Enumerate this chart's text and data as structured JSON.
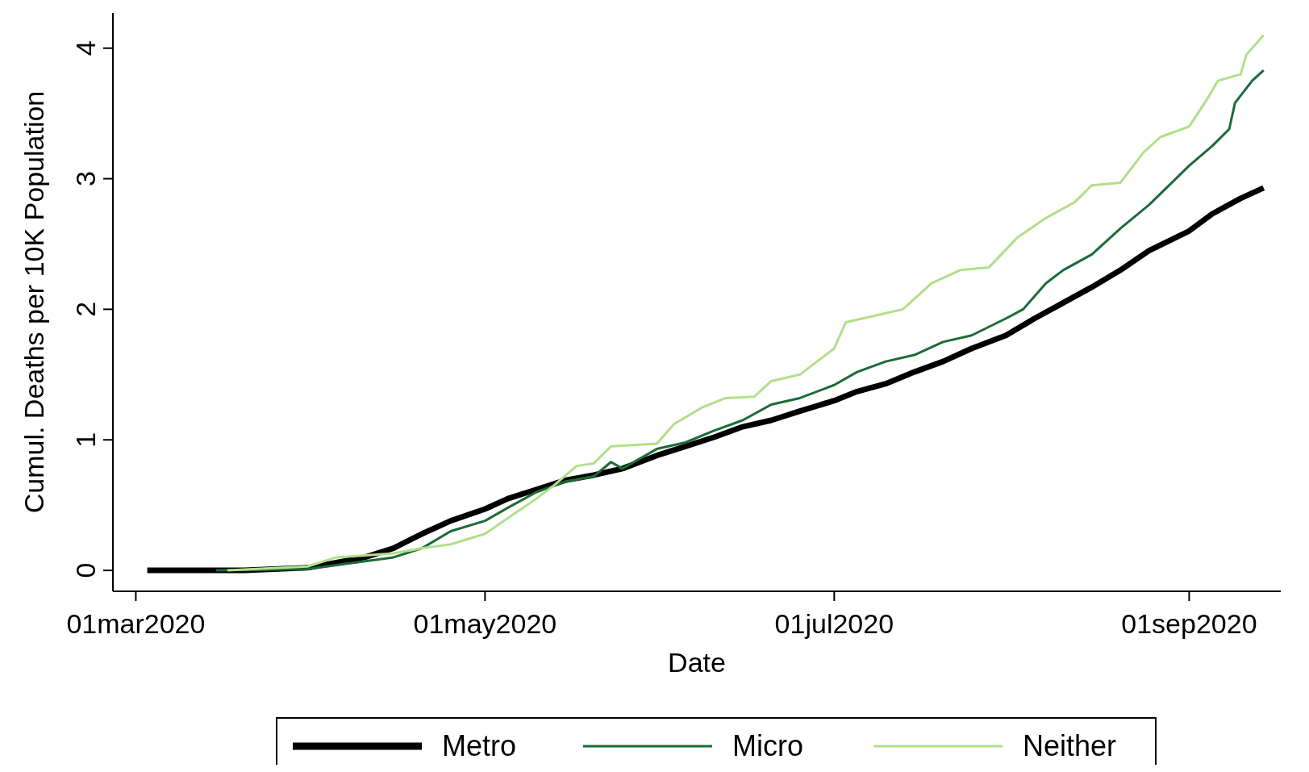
{
  "chart_data": {
    "type": "line",
    "xlabel": "Date",
    "ylabel": "Cumul. Deaths per 10K Population",
    "xlim": [
      "2020-02-26",
      "2020-09-17"
    ],
    "ylim": [
      -0.16,
      4.27
    ],
    "yticks": [
      0,
      1,
      2,
      3,
      4
    ],
    "xticks": [
      {
        "value": "2020-03-01",
        "label": "01mar2020"
      },
      {
        "value": "2020-05-01",
        "label": "01may2020"
      },
      {
        "value": "2020-07-01",
        "label": "01jul2020"
      },
      {
        "value": "2020-09-01",
        "label": "01sep2020"
      }
    ],
    "grid": false,
    "legend": "bottom",
    "marker": "none",
    "line_style": "solid",
    "series": [
      {
        "name": "Metro",
        "color": "#000000",
        "x": [
          "2020-03-03",
          "2020-03-20",
          "2020-03-31",
          "2020-04-10",
          "2020-04-15",
          "2020-04-20",
          "2020-04-25",
          "2020-05-01",
          "2020-05-05",
          "2020-05-10",
          "2020-05-15",
          "2020-05-20",
          "2020-05-25",
          "2020-05-31",
          "2020-06-05",
          "2020-06-10",
          "2020-06-15",
          "2020-06-20",
          "2020-06-25",
          "2020-07-01",
          "2020-07-05",
          "2020-07-10",
          "2020-07-15",
          "2020-07-20",
          "2020-07-25",
          "2020-07-31",
          "2020-08-05",
          "2020-08-10",
          "2020-08-15",
          "2020-08-20",
          "2020-08-25",
          "2020-09-01",
          "2020-09-05",
          "2020-09-10",
          "2020-09-14"
        ],
        "values": [
          0,
          0,
          0.02,
          0.1,
          0.17,
          0.28,
          0.38,
          0.47,
          0.55,
          0.62,
          0.69,
          0.73,
          0.78,
          0.88,
          0.95,
          1.02,
          1.1,
          1.15,
          1.22,
          1.3,
          1.37,
          1.43,
          1.52,
          1.6,
          1.7,
          1.8,
          1.93,
          2.05,
          2.17,
          2.3,
          2.45,
          2.6,
          2.73,
          2.85,
          2.93
        ]
      },
      {
        "name": "Micro",
        "color": "#1b6b3a",
        "x": [
          "2020-03-15",
          "2020-03-31",
          "2020-04-10",
          "2020-04-15",
          "2020-04-20",
          "2020-04-25",
          "2020-05-01",
          "2020-05-05",
          "2020-05-10",
          "2020-05-15",
          "2020-05-20",
          "2020-05-23",
          "2020-05-25",
          "2020-05-31",
          "2020-06-05",
          "2020-06-10",
          "2020-06-15",
          "2020-06-20",
          "2020-06-25",
          "2020-07-01",
          "2020-07-05",
          "2020-07-10",
          "2020-07-15",
          "2020-07-20",
          "2020-07-25",
          "2020-07-31",
          "2020-08-03",
          "2020-08-07",
          "2020-08-10",
          "2020-08-15",
          "2020-08-20",
          "2020-08-25",
          "2020-09-01",
          "2020-09-05",
          "2020-09-08",
          "2020-09-09",
          "2020-09-12",
          "2020-09-14"
        ],
        "values": [
          0,
          0.01,
          0.07,
          0.1,
          0.17,
          0.3,
          0.38,
          0.48,
          0.6,
          0.68,
          0.72,
          0.83,
          0.78,
          0.93,
          0.98,
          1.07,
          1.15,
          1.27,
          1.32,
          1.42,
          1.52,
          1.6,
          1.65,
          1.75,
          1.8,
          1.93,
          2.0,
          2.2,
          2.3,
          2.42,
          2.62,
          2.8,
          3.1,
          3.25,
          3.38,
          3.58,
          3.75,
          3.83
        ]
      },
      {
        "name": "Neither",
        "color": "#b2df8a",
        "x": [
          "2020-03-17",
          "2020-03-31",
          "2020-04-05",
          "2020-04-15",
          "2020-04-20",
          "2020-04-25",
          "2020-05-01",
          "2020-05-05",
          "2020-05-10",
          "2020-05-13",
          "2020-05-17",
          "2020-05-20",
          "2020-05-23",
          "2020-05-31",
          "2020-06-03",
          "2020-06-08",
          "2020-06-12",
          "2020-06-17",
          "2020-06-20",
          "2020-06-25",
          "2020-06-28",
          "2020-07-01",
          "2020-07-03",
          "2020-07-08",
          "2020-07-13",
          "2020-07-18",
          "2020-07-23",
          "2020-07-28",
          "2020-08-02",
          "2020-08-07",
          "2020-08-12",
          "2020-08-15",
          "2020-08-20",
          "2020-08-24",
          "2020-08-27",
          "2020-09-01",
          "2020-09-04",
          "2020-09-06",
          "2020-09-10",
          "2020-09-11",
          "2020-09-14"
        ],
        "values": [
          0,
          0.03,
          0.1,
          0.13,
          0.17,
          0.2,
          0.28,
          0.4,
          0.55,
          0.65,
          0.8,
          0.82,
          0.95,
          0.97,
          1.12,
          1.25,
          1.32,
          1.33,
          1.45,
          1.5,
          1.6,
          1.7,
          1.9,
          1.95,
          2.0,
          2.2,
          2.3,
          2.32,
          2.55,
          2.7,
          2.82,
          2.95,
          2.97,
          3.2,
          3.32,
          3.4,
          3.6,
          3.75,
          3.8,
          3.95,
          4.1
        ]
      }
    ]
  }
}
